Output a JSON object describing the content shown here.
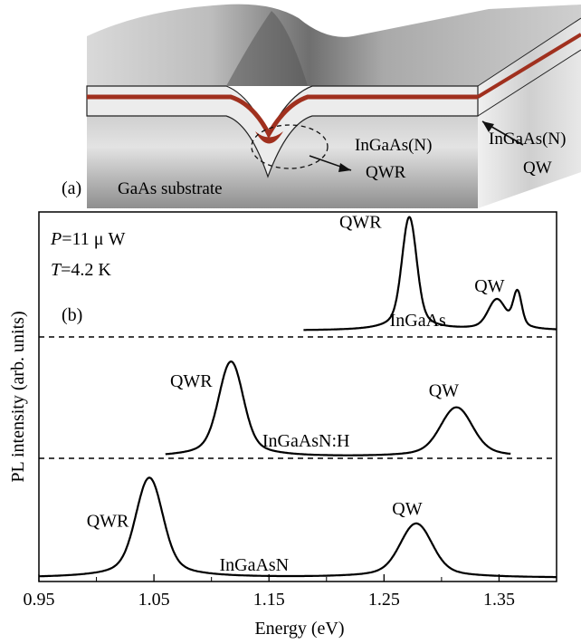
{
  "panel_a": {
    "label": "(a)",
    "substrate_label": "GaAs substrate",
    "qwr_label_material": "InGaAs(N)",
    "qwr_label_type": "QWR",
    "qw_label_material": "InGaAs(N)",
    "qw_label_type": "QW",
    "colors": {
      "well_layer": "#a0301e",
      "barrier_layer": "#e6e6e6",
      "block_dark": "#7a7a7a",
      "block_light": "#d8d8d8"
    }
  },
  "panel_b": {
    "label": "(b)",
    "power_symbol": "P",
    "power_value": "=11  μ W",
    "temp_symbol": "T",
    "temp_value": "=4.2 K"
  },
  "chart_data": {
    "type": "line",
    "xlabel": "Energy (eV)",
    "ylabel": "PL intensity (arb. units)",
    "xlim": [
      0.95,
      1.4
    ],
    "xticks": [
      "0.95",
      "1.05",
      "1.15",
      "1.25",
      "1.35"
    ],
    "y_scale": "arbitrary, vertically offset spectra",
    "separators": "dashed lines between spectra",
    "series": [
      {
        "name": "InGaAs",
        "baseline": 0.1,
        "x_range": [
          1.18,
          1.4
        ],
        "peaks": [
          {
            "label": "QWR",
            "center": 1.272,
            "height": 2.5,
            "width": 0.006
          },
          {
            "label": "QW",
            "center": 1.348,
            "height": 0.65,
            "width": 0.007
          },
          {
            "label": "",
            "center": 1.366,
            "height": 0.8,
            "width": 0.0035
          }
        ]
      },
      {
        "name": "InGaAsN:H",
        "baseline": 0.0,
        "x_range": [
          1.06,
          1.36
        ],
        "peaks": [
          {
            "label": "QWR",
            "center": 1.117,
            "height": 2.4,
            "width": 0.01
          },
          {
            "label": "QW",
            "center": 1.313,
            "height": 1.25,
            "width": 0.013
          }
        ]
      },
      {
        "name": "InGaAsN",
        "baseline": 0.0,
        "x_range": [
          0.95,
          1.4
        ],
        "peaks": [
          {
            "label": "QWR",
            "center": 1.046,
            "height": 2.4,
            "width": 0.011
          },
          {
            "label": "QW",
            "center": 1.278,
            "height": 1.3,
            "width": 0.013
          }
        ]
      }
    ]
  }
}
